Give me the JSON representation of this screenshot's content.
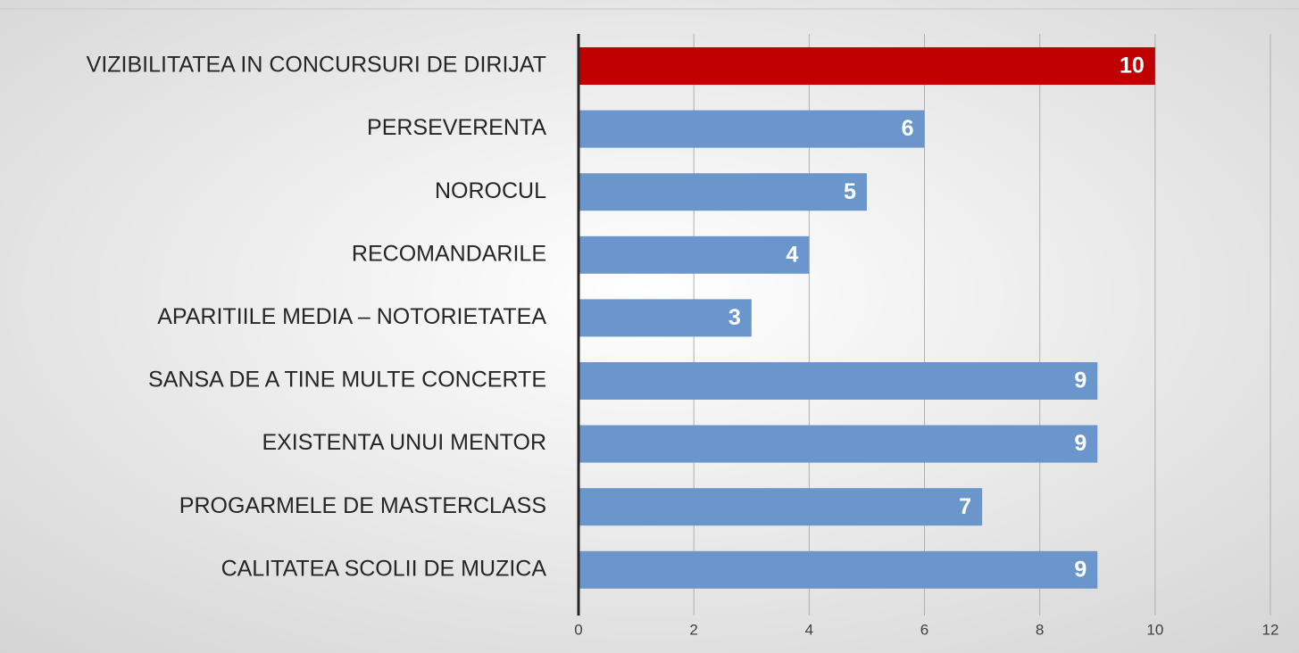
{
  "chart_data": {
    "type": "hbar",
    "categories": [
      "VIZIBILITATEA IN CONCURSURI DE DIRIJAT",
      "PERSEVERENTA ",
      "NOROCUL",
      "RECOMANDARILE",
      "APARITIILE MEDIA – NOTORIETATEA",
      "SANSA DE A TINE MULTE CONCERTE",
      "EXISTENTA UNUI MENTOR",
      "PROGARMELE DE MASTERCLASS ",
      "CALITATEA SCOLII DE MUZICA"
    ],
    "values": [
      10,
      6,
      5,
      4,
      3,
      9,
      9,
      7,
      9
    ],
    "colors": [
      "#c00000",
      "#6a96cb",
      "#6a96cb",
      "#6a96cb",
      "#6a96cb",
      "#6a96cb",
      "#6a96cb",
      "#6a96cb",
      "#6a96cb"
    ],
    "xlim": [
      0,
      12
    ],
    "xticks": [
      0,
      2,
      4,
      6,
      8,
      10,
      12
    ],
    "grid": true
  }
}
